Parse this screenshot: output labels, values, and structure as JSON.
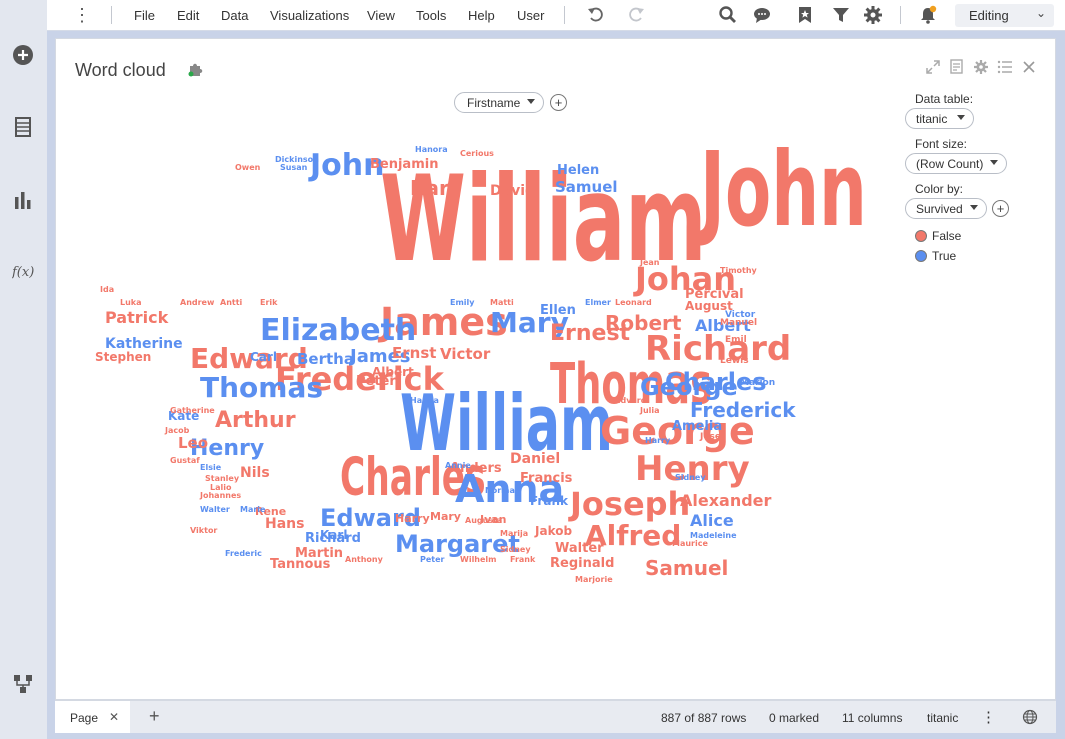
{
  "menubar": {
    "menus": [
      "File",
      "Edit",
      "Data",
      "Visualizations",
      "View",
      "Tools",
      "Help",
      "User"
    ],
    "mode": "Editing"
  },
  "visual": {
    "title": "Word cloud",
    "category_column": "Firstname"
  },
  "legend": {
    "data_table_label": "Data table:",
    "data_table_value": "titanic",
    "font_size_label": "Font size:",
    "font_size_value": "(Row Count)",
    "color_by_label": "Color by:",
    "color_by_value": "Survived",
    "items": [
      {
        "label": "False",
        "color": "#f2786a"
      },
      {
        "label": "True",
        "color": "#5b8ff0"
      }
    ]
  },
  "statusbar": {
    "page_tab": "Page",
    "rows": "887 of 887 rows",
    "marked": "0 marked",
    "columns": "11 columns",
    "table": "titanic"
  },
  "colors": {
    "false": "#f2786a",
    "true": "#5b8ff0"
  },
  "chart_data": {
    "type": "wordcloud",
    "words": [
      {
        "text": "William",
        "survived": false,
        "size": 95
      },
      {
        "text": "John",
        "survived": false,
        "size": 82
      },
      {
        "text": "William",
        "survived": true,
        "size": 62
      },
      {
        "text": "Thomas",
        "survived": false,
        "size": 45
      },
      {
        "text": "Charles",
        "survived": false,
        "size": 42
      },
      {
        "text": "Anna",
        "survived": true,
        "size": 38
      },
      {
        "text": "James",
        "survived": false,
        "size": 38
      },
      {
        "text": "George",
        "survived": false,
        "size": 38
      },
      {
        "text": "Henry",
        "survived": false,
        "size": 34
      },
      {
        "text": "Richard",
        "survived": false,
        "size": 34
      },
      {
        "text": "Frederick",
        "survived": false,
        "size": 32
      },
      {
        "text": "Joseph",
        "survived": false,
        "size": 32
      },
      {
        "text": "Johan",
        "survived": false,
        "size": 32
      },
      {
        "text": "Elizabeth",
        "survived": true,
        "size": 30
      },
      {
        "text": "John",
        "survived": true,
        "size": 30
      },
      {
        "text": "Alfred",
        "survived": false,
        "size": 28
      },
      {
        "text": "Mary",
        "survived": true,
        "size": 28
      },
      {
        "text": "Edward",
        "survived": false,
        "size": 28
      },
      {
        "text": "Thomas",
        "survived": true,
        "size": 28
      },
      {
        "text": "George",
        "survived": true,
        "size": 24
      },
      {
        "text": "Charles",
        "survived": true,
        "size": 24
      },
      {
        "text": "Margaret",
        "survived": true,
        "size": 24
      },
      {
        "text": "Edward",
        "survived": true,
        "size": 24
      },
      {
        "text": "Ernest",
        "survived": false,
        "size": 22
      },
      {
        "text": "Henry",
        "survived": true,
        "size": 22
      },
      {
        "text": "Arthur",
        "survived": false,
        "size": 22
      },
      {
        "text": "Samuel",
        "survived": false,
        "size": 20
      },
      {
        "text": "Karl",
        "survived": false,
        "size": 20
      },
      {
        "text": "Robert",
        "survived": false,
        "size": 20
      },
      {
        "text": "Frederick",
        "survived": true,
        "size": 20
      },
      {
        "text": "James",
        "survived": true,
        "size": 18
      },
      {
        "text": "Alexander",
        "survived": false,
        "size": 16
      },
      {
        "text": "Albert",
        "survived": true,
        "size": 16
      },
      {
        "text": "Patrick",
        "survived": false,
        "size": 16
      },
      {
        "text": "Alice",
        "survived": true,
        "size": 16
      },
      {
        "text": "Samuel",
        "survived": true,
        "size": 15
      },
      {
        "text": "Bertha",
        "survived": true,
        "size": 15
      },
      {
        "text": "Ernst",
        "survived": false,
        "size": 15
      },
      {
        "text": "Victor",
        "survived": false,
        "size": 15
      },
      {
        "text": "Daniel",
        "survived": false,
        "size": 14
      },
      {
        "text": "Katherine",
        "survived": true,
        "size": 14
      },
      {
        "text": "David",
        "survived": false,
        "size": 14
      },
      {
        "text": "Benjamin",
        "survived": false,
        "size": 13
      },
      {
        "text": "Percival",
        "survived": false,
        "size": 13
      },
      {
        "text": "Nils",
        "survived": false,
        "size": 14
      },
      {
        "text": "Anders",
        "survived": false,
        "size": 13
      },
      {
        "text": "Hans",
        "survived": false,
        "size": 14
      },
      {
        "text": "Martin",
        "survived": false,
        "size": 13
      },
      {
        "text": "Tannous",
        "survived": false,
        "size": 13
      },
      {
        "text": "Reginald",
        "survived": false,
        "size": 13
      },
      {
        "text": "Walter",
        "survived": false,
        "size": 13
      },
      {
        "text": "Francis",
        "survived": false,
        "size": 13
      },
      {
        "text": "Leo",
        "survived": false,
        "size": 15
      },
      {
        "text": "Stephen",
        "survived": false,
        "size": 12
      },
      {
        "text": "Carl",
        "survived": true,
        "size": 12
      },
      {
        "text": "Peter",
        "survived": false,
        "size": 13
      },
      {
        "text": "Albert",
        "survived": false,
        "size": 12
      },
      {
        "text": "Helen",
        "survived": true,
        "size": 13
      },
      {
        "text": "Ellen",
        "survived": true,
        "size": 13
      },
      {
        "text": "Amelia",
        "survived": true,
        "size": 13
      },
      {
        "text": "Frank",
        "survived": true,
        "size": 12
      },
      {
        "text": "Harry",
        "survived": false,
        "size": 11
      },
      {
        "text": "Richard",
        "survived": true,
        "size": 13
      },
      {
        "text": "Karl",
        "survived": true,
        "size": 12
      },
      {
        "text": "Kate",
        "survived": true,
        "size": 12
      },
      {
        "text": "August",
        "survived": false,
        "size": 12
      },
      {
        "text": "Rene",
        "survived": false,
        "size": 11
      },
      {
        "text": "Jakob",
        "survived": false,
        "size": 12
      },
      {
        "text": "Ivan",
        "survived": false,
        "size": 11
      },
      {
        "text": "Mary",
        "survived": false,
        "size": 11
      },
      {
        "text": "Josef",
        "survived": false,
        "size": 9
      },
      {
        "text": "Marion",
        "survived": true,
        "size": 9
      },
      {
        "text": "Lewis",
        "survived": false,
        "size": 9
      },
      {
        "text": "Manuel",
        "survived": false,
        "size": 9
      },
      {
        "text": "Emil",
        "survived": false,
        "size": 9
      },
      {
        "text": "Victor",
        "survived": true,
        "size": 9
      },
      {
        "text": "Timothy",
        "survived": false,
        "size": 8
      },
      {
        "text": "Jean",
        "survived": false,
        "size": 8
      },
      {
        "text": "Sidney",
        "survived": true,
        "size": 8
      },
      {
        "text": "Madeleine",
        "survived": true,
        "size": 8
      },
      {
        "text": "Maurice",
        "survived": false,
        "size": 8
      },
      {
        "text": "Harry",
        "survived": true,
        "size": 8
      },
      {
        "text": "Julia",
        "survived": false,
        "size": 8
      },
      {
        "text": "Edvard",
        "survived": false,
        "size": 8
      },
      {
        "text": "Hanna",
        "survived": true,
        "size": 8
      },
      {
        "text": "Annie",
        "survived": true,
        "size": 8
      },
      {
        "text": "Norman",
        "survived": true,
        "size": 8
      },
      {
        "text": "Augusta",
        "survived": false,
        "size": 8
      },
      {
        "text": "Marija",
        "survived": false,
        "size": 8
      },
      {
        "text": "Wilhelm",
        "survived": false,
        "size": 8
      },
      {
        "text": "Peter",
        "survived": true,
        "size": 8
      },
      {
        "text": "Anthony",
        "survived": false,
        "size": 8
      },
      {
        "text": "Marjorie",
        "survived": false,
        "size": 8
      },
      {
        "text": "Frederic",
        "survived": true,
        "size": 8
      },
      {
        "text": "Johannes",
        "survived": false,
        "size": 8
      },
      {
        "text": "Walter",
        "survived": true,
        "size": 8
      },
      {
        "text": "Viktor",
        "survived": false,
        "size": 8
      },
      {
        "text": "Marie",
        "survived": true,
        "size": 8
      },
      {
        "text": "Lalio",
        "survived": false,
        "size": 8
      },
      {
        "text": "Stanley",
        "survived": false,
        "size": 8
      },
      {
        "text": "Elsie",
        "survived": true,
        "size": 8
      },
      {
        "text": "Gustaf",
        "survived": false,
        "size": 8
      },
      {
        "text": "Jacob",
        "survived": false,
        "size": 8
      },
      {
        "text": "Gatherine",
        "survived": false,
        "size": 8
      },
      {
        "text": "Luka",
        "survived": false,
        "size": 8
      },
      {
        "text": "Andrew",
        "survived": false,
        "size": 8
      },
      {
        "text": "Antti",
        "survived": false,
        "size": 8
      },
      {
        "text": "Erik",
        "survived": false,
        "size": 8
      },
      {
        "text": "Emily",
        "survived": true,
        "size": 8
      },
      {
        "text": "Matti",
        "survived": false,
        "size": 8
      },
      {
        "text": "Elmer",
        "survived": true,
        "size": 8
      },
      {
        "text": "Leonard",
        "survived": false,
        "size": 8
      },
      {
        "text": "Ida",
        "survived": false,
        "size": 8
      },
      {
        "text": "Owen",
        "survived": false,
        "size": 8
      },
      {
        "text": "Dickinson",
        "survived": true,
        "size": 8
      },
      {
        "text": "Susan",
        "survived": true,
        "size": 8
      },
      {
        "text": "Hanora",
        "survived": true,
        "size": 8
      },
      {
        "text": "Cerious",
        "survived": false,
        "size": 8
      },
      {
        "text": "Sidney",
        "survived": false,
        "size": 8
      },
      {
        "text": "Frank",
        "survived": false,
        "size": 8
      }
    ]
  }
}
